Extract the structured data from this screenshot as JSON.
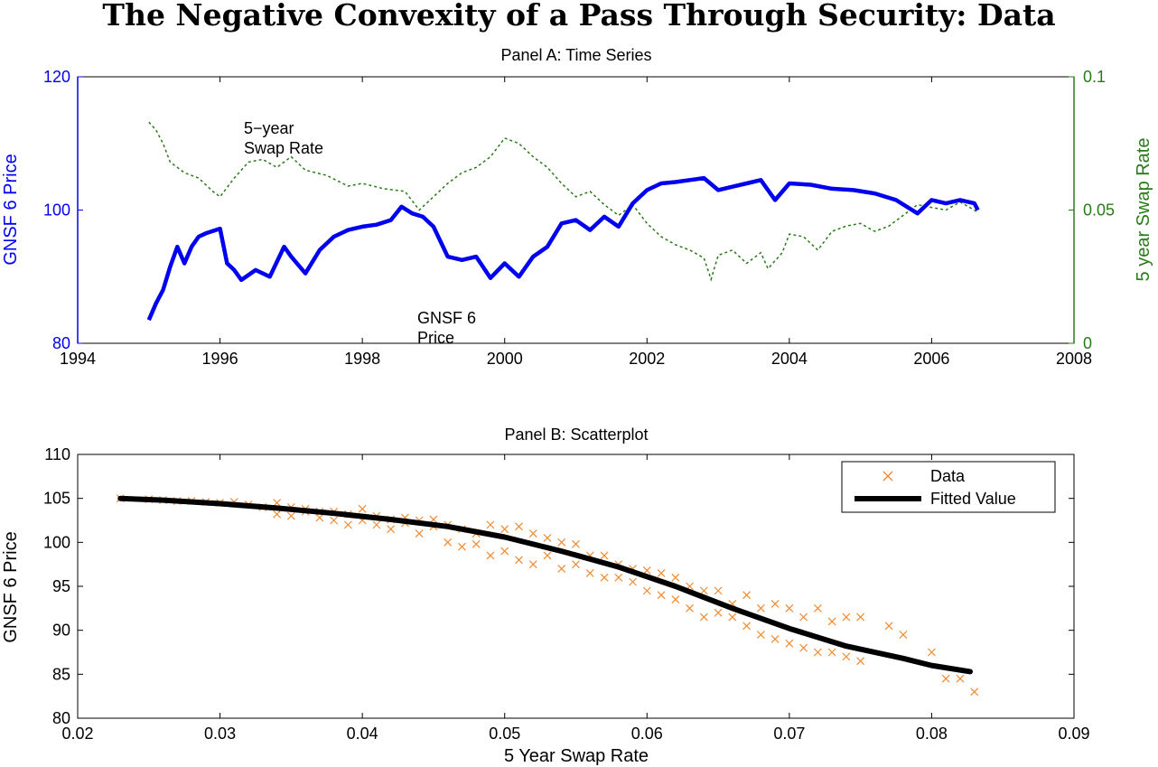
{
  "title": "The Negative Convexity of a Pass Through Security: Data",
  "chart_data": [
    {
      "type": "line",
      "title": "Panel A: Time Series",
      "xlim": [
        1994,
        2008
      ],
      "xticks": [
        "1994",
        "1996",
        "1998",
        "2000",
        "2002",
        "2004",
        "2006",
        "2008"
      ],
      "ylabel_left": "GNSF 6 Price",
      "ylim_left": [
        80,
        120
      ],
      "yticks_left": [
        "80",
        "100",
        "120"
      ],
      "ylabel_right": "5 year Swap Rate",
      "ylim_right": [
        0,
        0.1
      ],
      "yticks_right": [
        "0",
        "0.05",
        "0.1"
      ],
      "grid": false,
      "annotations": {
        "swap_line1": "5−year",
        "swap_line2": "Swap Rate",
        "price_line1": "GNSF 6",
        "price_line2": "Price"
      },
      "series": [
        {
          "name": "GNSF 6 Price",
          "axis": "left",
          "color": "#0000ee",
          "style": "solid",
          "x": [
            1995.0,
            1995.1,
            1995.2,
            1995.3,
            1995.4,
            1995.5,
            1995.6,
            1995.7,
            1995.8,
            1996.0,
            1996.1,
            1996.2,
            1996.3,
            1996.5,
            1996.7,
            1996.9,
            1997.0,
            1997.2,
            1997.4,
            1997.6,
            1997.8,
            1998.0,
            1998.2,
            1998.4,
            1998.55,
            1998.7,
            1998.85,
            1999.0,
            1999.2,
            1999.4,
            1999.6,
            1999.8,
            2000.0,
            2000.2,
            2000.4,
            2000.6,
            2000.8,
            2001.0,
            2001.2,
            2001.4,
            2001.6,
            2001.8,
            2002.0,
            2002.2,
            2002.4,
            2002.6,
            2002.8,
            2003.0,
            2003.2,
            2003.4,
            2003.6,
            2003.8,
            2004.0,
            2004.3,
            2004.6,
            2004.9,
            2005.2,
            2005.5,
            2005.8,
            2006.0,
            2006.2,
            2006.4,
            2006.6,
            2006.65
          ],
          "values": [
            83.5,
            86.0,
            88.0,
            91.5,
            94.5,
            92.0,
            94.5,
            96.0,
            96.5,
            97.2,
            92.0,
            91.0,
            89.5,
            91.0,
            90.0,
            94.5,
            93.0,
            90.5,
            94.0,
            96.0,
            97.0,
            97.5,
            97.8,
            98.5,
            100.5,
            99.5,
            99.0,
            97.5,
            93.0,
            92.5,
            93.0,
            89.8,
            92.0,
            90.0,
            93.0,
            94.5,
            98.0,
            98.5,
            97.0,
            99.0,
            97.5,
            101.0,
            103.0,
            104.0,
            104.2,
            104.5,
            104.8,
            103.0,
            103.5,
            104.0,
            104.5,
            101.5,
            104.0,
            103.8,
            103.2,
            103.0,
            102.5,
            101.5,
            99.5,
            101.5,
            101.0,
            101.5,
            101.0,
            100.0
          ]
        },
        {
          "name": "5 year Swap Rate",
          "axis": "right",
          "color": "#2a7a1a",
          "style": "dashed",
          "x": [
            1995.0,
            1995.1,
            1995.2,
            1995.3,
            1995.5,
            1995.7,
            1995.9,
            1996.0,
            1996.2,
            1996.4,
            1996.6,
            1996.8,
            1997.0,
            1997.2,
            1997.5,
            1997.8,
            1998.0,
            1998.3,
            1998.6,
            1998.8,
            1999.0,
            1999.2,
            1999.4,
            1999.6,
            1999.8,
            2000.0,
            2000.2,
            2000.4,
            2000.6,
            2000.8,
            2001.0,
            2001.2,
            2001.4,
            2001.6,
            2001.8,
            2002.0,
            2002.2,
            2002.4,
            2002.6,
            2002.8,
            2002.9,
            2003.0,
            2003.2,
            2003.4,
            2003.6,
            2003.7,
            2003.9,
            2004.0,
            2004.2,
            2004.4,
            2004.6,
            2004.8,
            2005.0,
            2005.2,
            2005.4,
            2005.6,
            2005.8,
            2006.0,
            2006.2,
            2006.4,
            2006.6,
            2006.65
          ],
          "values": [
            0.083,
            0.08,
            0.075,
            0.068,
            0.064,
            0.062,
            0.057,
            0.055,
            0.062,
            0.068,
            0.069,
            0.066,
            0.07,
            0.065,
            0.063,
            0.059,
            0.06,
            0.058,
            0.057,
            0.05,
            0.055,
            0.06,
            0.064,
            0.066,
            0.07,
            0.077,
            0.075,
            0.07,
            0.066,
            0.06,
            0.055,
            0.057,
            0.052,
            0.048,
            0.052,
            0.045,
            0.04,
            0.037,
            0.035,
            0.032,
            0.024,
            0.033,
            0.035,
            0.03,
            0.034,
            0.028,
            0.034,
            0.041,
            0.04,
            0.035,
            0.042,
            0.044,
            0.045,
            0.042,
            0.044,
            0.048,
            0.052,
            0.051,
            0.05,
            0.053,
            0.05,
            0.049
          ]
        }
      ]
    },
    {
      "type": "scatter",
      "title": "Panel B: Scatterplot",
      "xlabel": "5 Year Swap Rate",
      "ylabel": "GNSF 6 Price",
      "xlim": [
        0.02,
        0.09
      ],
      "ylim": [
        80,
        110
      ],
      "xticks": [
        "0.02",
        "0.03",
        "0.04",
        "0.05",
        "0.06",
        "0.07",
        "0.08",
        "0.09"
      ],
      "yticks": [
        "80",
        "85",
        "90",
        "95",
        "100",
        "105",
        "110"
      ],
      "legend_position": "top-right",
      "grid": false,
      "series": [
        {
          "name": "Data",
          "marker": "x",
          "color": "#f08a30",
          "x": [
            0.023,
            0.025,
            0.026,
            0.027,
            0.028,
            0.029,
            0.03,
            0.031,
            0.032,
            0.033,
            0.034,
            0.034,
            0.035,
            0.035,
            0.036,
            0.036,
            0.037,
            0.037,
            0.038,
            0.038,
            0.039,
            0.039,
            0.04,
            0.04,
            0.041,
            0.041,
            0.042,
            0.042,
            0.043,
            0.043,
            0.044,
            0.044,
            0.045,
            0.045,
            0.046,
            0.046,
            0.047,
            0.047,
            0.048,
            0.048,
            0.049,
            0.049,
            0.05,
            0.05,
            0.051,
            0.051,
            0.052,
            0.052,
            0.053,
            0.053,
            0.054,
            0.054,
            0.055,
            0.055,
            0.056,
            0.056,
            0.057,
            0.057,
            0.058,
            0.058,
            0.059,
            0.059,
            0.06,
            0.06,
            0.061,
            0.061,
            0.062,
            0.062,
            0.063,
            0.063,
            0.064,
            0.064,
            0.065,
            0.065,
            0.066,
            0.066,
            0.067,
            0.067,
            0.068,
            0.068,
            0.069,
            0.069,
            0.07,
            0.07,
            0.071,
            0.071,
            0.072,
            0.072,
            0.073,
            0.073,
            0.074,
            0.074,
            0.075,
            0.075,
            0.077,
            0.078,
            0.08,
            0.081,
            0.082,
            0.083
          ],
          "values": [
            105.0,
            104.9,
            104.8,
            104.7,
            104.7,
            104.6,
            104.5,
            104.6,
            104.3,
            104.0,
            104.5,
            103.2,
            104.0,
            103.0,
            103.8,
            103.5,
            103.5,
            102.8,
            103.5,
            102.5,
            103.2,
            102.0,
            103.8,
            102.5,
            103.0,
            102.0,
            102.6,
            101.5,
            102.8,
            102.2,
            102.5,
            101.0,
            102.6,
            101.8,
            102.0,
            100.0,
            101.5,
            99.5,
            101.0,
            99.8,
            102.0,
            98.5,
            101.5,
            99.0,
            101.8,
            98.0,
            101.0,
            97.5,
            100.5,
            98.5,
            100.0,
            97.0,
            99.8,
            97.5,
            98.5,
            96.5,
            98.5,
            96.0,
            97.5,
            96.0,
            97.0,
            95.5,
            96.8,
            94.5,
            96.5,
            94.0,
            96.0,
            93.5,
            95.0,
            92.5,
            94.5,
            91.5,
            94.5,
            92.0,
            93.0,
            91.5,
            94.0,
            90.5,
            92.5,
            89.5,
            93.0,
            89.0,
            92.5,
            88.5,
            91.5,
            88.0,
            92.5,
            87.5,
            91.0,
            87.5,
            91.5,
            87.0,
            91.5,
            86.5,
            90.5,
            89.5,
            87.5,
            84.5,
            84.5,
            83.0
          ]
        },
        {
          "name": "Fitted Value",
          "style": "line",
          "color": "#000000",
          "x": [
            0.023,
            0.026,
            0.03,
            0.034,
            0.038,
            0.042,
            0.046,
            0.05,
            0.054,
            0.058,
            0.062,
            0.066,
            0.07,
            0.074,
            0.078,
            0.08,
            0.0827
          ],
          "values": [
            105.0,
            104.8,
            104.4,
            103.9,
            103.3,
            102.6,
            101.8,
            100.6,
            99.0,
            97.2,
            95.0,
            92.5,
            90.2,
            88.2,
            86.8,
            86.0,
            85.3
          ]
        }
      ]
    }
  ]
}
